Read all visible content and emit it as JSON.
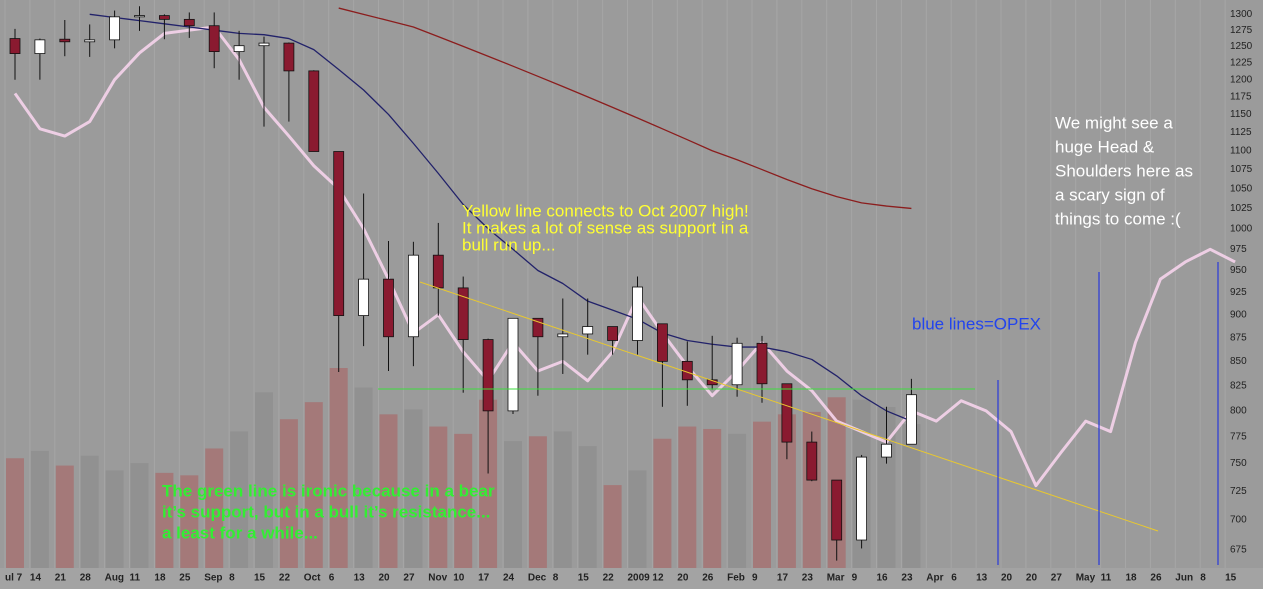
{
  "chart_data": {
    "type": "candlestick",
    "log_scale": true,
    "grid": true,
    "categories": [
      "ul 7",
      "14",
      "21",
      "28",
      "Aug",
      "11",
      "18",
      "25",
      "Sep",
      "8",
      "15",
      "22",
      "Oct",
      "6",
      "13",
      "20",
      "27",
      "Nov",
      "10",
      "17",
      "24",
      "Dec",
      "8",
      "15",
      "22",
      "2009",
      "12",
      "20",
      "26",
      "Feb",
      "9",
      "17",
      "23",
      "Mar",
      "9",
      "16",
      "23",
      "Apr",
      "6",
      "13",
      "20",
      "20",
      "27",
      "May",
      "11",
      "18",
      "26",
      "Jun",
      "8",
      "15"
    ],
    "ohlc": {
      "open": [
        1262,
        1239,
        1261,
        1257,
        1260,
        1296,
        1298,
        1292,
        1282,
        1242,
        1251,
        1255,
        1213,
        1099,
        899,
        940,
        876,
        968,
        930,
        873,
        800,
        896,
        876,
        879,
        887,
        872,
        890,
        850,
        831,
        826,
        869,
        827,
        770,
        735,
        683,
        756,
        768,
        null,
        null,
        null,
        null,
        null,
        null,
        null,
        null,
        null,
        null,
        null,
        null,
        null
      ],
      "high": [
        1277,
        1262,
        1291,
        1284,
        1306,
        1313,
        1300,
        1303,
        1303,
        1274,
        1265,
        1256,
        1214,
        1099,
        1044,
        985,
        984,
        1007,
        943,
        874,
        896,
        896,
        918,
        918,
        887,
        943,
        890,
        871,
        877,
        875,
        877,
        827,
        780,
        735,
        758,
        804,
        832,
        null,
        null,
        null,
        null,
        null,
        null,
        null,
        null,
        null,
        null,
        null,
        null,
        null
      ],
      "low": [
        1200,
        1200,
        1235,
        1234,
        1247,
        1274,
        1261,
        1263,
        1217,
        1200,
        1133,
        1140,
        1099,
        839,
        866,
        840,
        845,
        899,
        818,
        741,
        797,
        815,
        837,
        857,
        857,
        857,
        804,
        805,
        821,
        814,
        808,
        754,
        734,
        666,
        676,
        750,
        768,
        null,
        null,
        null,
        null,
        null,
        null,
        null,
        null,
        null,
        null,
        null,
        null,
        null
      ],
      "close": [
        1239,
        1260,
        1257,
        1260,
        1296,
        1298,
        1292,
        1282,
        1242,
        1251,
        1255,
        1213,
        1099,
        899,
        940,
        876,
        968,
        930,
        873,
        800,
        896,
        876,
        879,
        887,
        872,
        931,
        850,
        831,
        826,
        869,
        827,
        770,
        735,
        683,
        756,
        768,
        816,
        null,
        null,
        null,
        null,
        null,
        null,
        null,
        null,
        null,
        null,
        null,
        null,
        null
      ],
      "up_color": "#ffffff",
      "down_color": "#8a1a30"
    },
    "volume": {
      "values": [
        4.5,
        4.8,
        4.2,
        4.6,
        4.0,
        4.3,
        3.9,
        3.8,
        4.9,
        5.6,
        7.2,
        6.1,
        6.8,
        8.2,
        7.4,
        6.3,
        6.5,
        5.8,
        5.5,
        6.9,
        5.2,
        5.4,
        5.6,
        5.0,
        3.4,
        4.0,
        5.3,
        5.8,
        5.7,
        5.5,
        6.0,
        6.3,
        6.4,
        7.0,
        6.9,
        6.6,
        5.9,
        null,
        null,
        null,
        null,
        null,
        null,
        null,
        null,
        null,
        null,
        null,
        null,
        null
      ],
      "up_color": "#8f8f8f",
      "down_color": "#a67070"
    },
    "series": [
      {
        "name": "overlay",
        "color": "#f6d4ec",
        "values": [
          1180,
          1130,
          1120,
          1140,
          1200,
          1240,
          1270,
          1275,
          1280,
          1230,
          1160,
          1120,
          1080,
          1050,
          1000,
          940,
          880,
          900,
          860,
          830,
          870,
          840,
          850,
          830,
          860,
          920,
          880,
          845,
          815,
          840,
          870,
          840,
          820,
          790,
          780,
          770,
          800,
          790,
          810,
          800,
          780,
          730,
          760,
          790,
          780,
          870,
          940,
          960,
          975,
          960
        ]
      },
      {
        "name": "ma50",
        "color": "#22226a",
        "values": [
          null,
          null,
          null,
          1300,
          1295,
          1290,
          1285,
          1280,
          1275,
          1270,
          1268,
          1262,
          1245,
          1215,
          1185,
          1150,
          1110,
          1070,
          1030,
          1000,
          975,
          950,
          935,
          915,
          905,
          895,
          880,
          872,
          868,
          865,
          865,
          860,
          852,
          835,
          815,
          800,
          790,
          null,
          null,
          null,
          null,
          null,
          null,
          null,
          null,
          null,
          null,
          null,
          null,
          null
        ]
      },
      {
        "name": "ma200",
        "color": "#8b1d1d",
        "values": [
          null,
          null,
          null,
          null,
          null,
          null,
          null,
          null,
          null,
          null,
          null,
          null,
          null,
          1310,
          1300,
          1290,
          1280,
          1265,
          1250,
          1235,
          1220,
          1205,
          1190,
          1175,
          1160,
          1145,
          1130,
          1115,
          1100,
          1088,
          1075,
          1062,
          1050,
          1040,
          1032,
          1028,
          1025,
          null,
          null,
          null,
          null,
          null,
          null,
          null,
          null,
          null,
          null,
          null,
          null,
          null
        ]
      }
    ],
    "ylim": [
      660,
      1323
    ],
    "yticks": [
      675,
      700,
      725,
      750,
      775,
      800,
      825,
      850,
      875,
      900,
      925,
      950,
      975,
      1000,
      1025,
      1050,
      1075,
      1100,
      1125,
      1150,
      1175,
      1200,
      1225,
      1250,
      1275,
      1300
    ],
    "annotations": {
      "yellow": [
        "Yellow line connects to Oct 2007 high!",
        "It makes a lot of sense as support in a",
        "bull run up..."
      ],
      "green": [
        "The  green line is ironic because in a bear",
        "it’s support, but in a bull it’s resistance...",
        "a least for a while..."
      ],
      "blue": [
        "blue lines=OPEX"
      ],
      "white": [
        "We might see a",
        "huge Head &",
        "Shoulders here as",
        "a scary sign of",
        "things to come :("
      ]
    }
  }
}
